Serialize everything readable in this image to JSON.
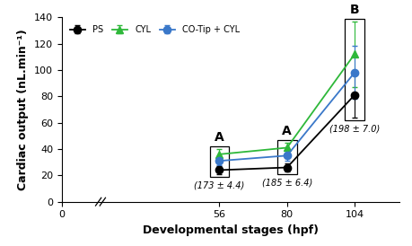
{
  "chart_data": {
    "type": "line",
    "x_label": "Developmental stages (hpf)",
    "y_label": "Cardiac output (nL.min⁻¹)",
    "x": [
      56,
      80,
      104
    ],
    "series": [
      {
        "name": "PS",
        "color": "#000000",
        "marker": "circle",
        "line_style": "solid",
        "values": [
          24,
          26,
          81
        ],
        "errors": [
          3,
          3,
          17
        ]
      },
      {
        "name": "CYL",
        "color": "#2eb83a",
        "marker": "triangle",
        "line_style": "solid",
        "values": [
          36,
          41,
          112
        ],
        "errors": [
          4,
          4,
          25
        ]
      },
      {
        "name": "CO-Tip + CYL",
        "color": "#3a78c9",
        "marker": "circle",
        "line_style": "solid",
        "values": [
          31,
          35,
          98
        ],
        "errors": [
          3,
          4,
          20
        ]
      }
    ],
    "groups": [
      {
        "x": 56,
        "letter": "A",
        "note": "(173 ± 4.4)"
      },
      {
        "x": 80,
        "letter": "A",
        "note": "(185 ± 6.4)"
      },
      {
        "x": 104,
        "letter": "B",
        "note": "(198 ± 7.0)"
      }
    ],
    "xlim": [
      0,
      120
    ],
    "xticks": [
      0,
      56,
      80,
      104
    ],
    "ylim": [
      0,
      140
    ],
    "yticks": [
      0,
      20,
      40,
      60,
      80,
      100,
      120,
      140
    ],
    "grid": false,
    "legend": "upper left"
  }
}
